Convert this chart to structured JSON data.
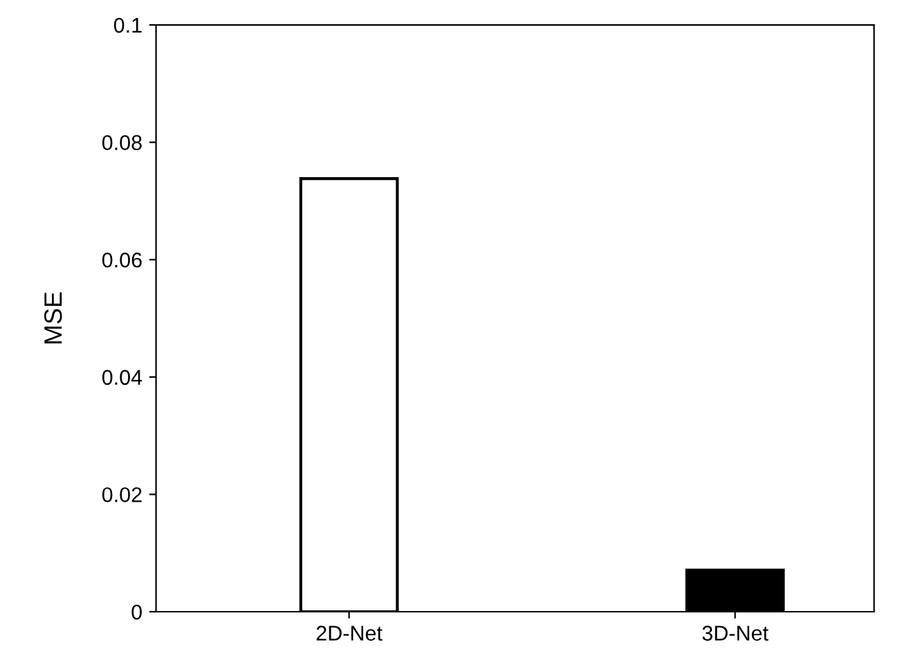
{
  "chart_data": {
    "type": "bar",
    "ylabel": "MSE",
    "categories": [
      "2D-Net",
      "3D-Net"
    ],
    "values": [
      0.0738,
      0.0071
    ],
    "colors": [
      "#ffffff",
      "#000000"
    ],
    "ylim": [
      0,
      0.1
    ],
    "yticks": [
      {
        "value": 0,
        "label": "0"
      },
      0.02,
      0.04,
      0.06,
      0.08,
      0.1
    ],
    "grid": false,
    "legend": false
  }
}
